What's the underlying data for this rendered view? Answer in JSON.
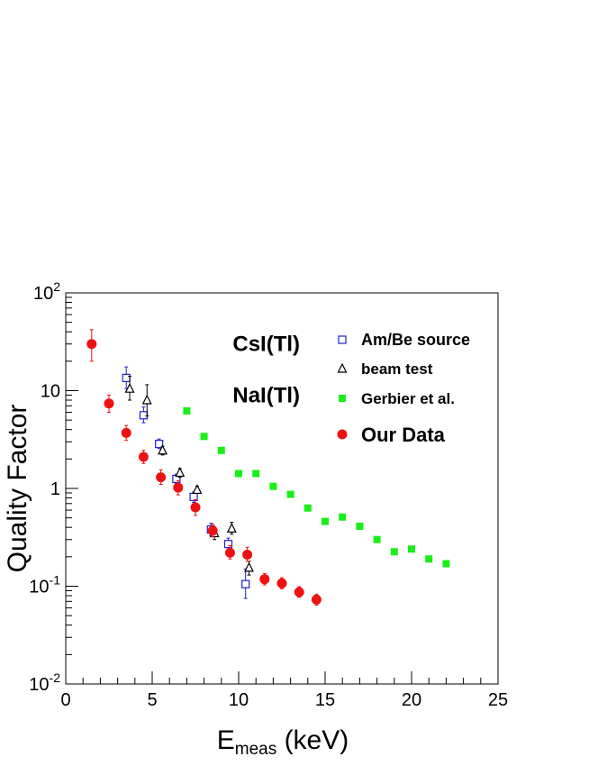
{
  "chart_data": {
    "type": "scatter",
    "title": "",
    "xlabel": {
      "main": "E",
      "sub": "meas",
      "unit": " (keV)"
    },
    "ylabel": "Quality Factor",
    "xlim": [
      0,
      25
    ],
    "ylim": [
      0.01,
      100
    ],
    "yscale": "log",
    "grid": false,
    "x_ticks": [
      0,
      5,
      10,
      15,
      20,
      25
    ],
    "x_tick_labels": [
      "0",
      "5",
      "10",
      "15",
      "20",
      "25"
    ],
    "y_ticks": [
      {
        "value": 0.01,
        "base": "10",
        "exp": "-2"
      },
      {
        "value": 0.1,
        "base": "10",
        "exp": "-1"
      },
      {
        "value": 1,
        "base": "1",
        "exp": ""
      },
      {
        "value": 10,
        "base": "10",
        "exp": ""
      },
      {
        "value": 100,
        "base": "10",
        "exp": "2"
      }
    ],
    "annotations": [
      {
        "text": "CsI(Tl)",
        "x": 11.6,
        "y": 30
      },
      {
        "text": "NaI(Tl)",
        "x": 11.6,
        "y": 9.0
      }
    ],
    "series": [
      {
        "name": "Am/Be source",
        "marker": "open-square",
        "color": "#1f1fd0",
        "points": [
          {
            "x": 3.5,
            "y": 13.5,
            "lo": 10.5,
            "hi": 17.5
          },
          {
            "x": 4.5,
            "y": 5.6,
            "lo": 4.7,
            "hi": 6.8
          },
          {
            "x": 5.4,
            "y": 2.85,
            "lo": 2.55,
            "hi": 3.2
          },
          {
            "x": 6.4,
            "y": 1.25,
            "lo": 1.12,
            "hi": 1.4
          },
          {
            "x": 7.4,
            "y": 0.82,
            "lo": 0.72,
            "hi": 0.92
          },
          {
            "x": 8.4,
            "y": 0.38,
            "lo": 0.33,
            "hi": 0.44
          },
          {
            "x": 9.4,
            "y": 0.27,
            "lo": 0.23,
            "hi": 0.31
          },
          {
            "x": 10.4,
            "y": 0.105,
            "lo": 0.075,
            "hi": 0.15
          }
        ]
      },
      {
        "name": "beam test",
        "marker": "open-triangle",
        "color": "#000000",
        "points": [
          {
            "x": 3.7,
            "y": 10.5,
            "lo": 8.0,
            "hi": 14.0
          },
          {
            "x": 4.7,
            "y": 8.0,
            "lo": 5.5,
            "hi": 11.5
          },
          {
            "x": 5.6,
            "y": 2.45,
            "lo": 2.2,
            "hi": 2.7
          },
          {
            "x": 6.6,
            "y": 1.45,
            "lo": 1.3,
            "hi": 1.6
          },
          {
            "x": 7.6,
            "y": 0.97,
            "lo": 0.9,
            "hi": 1.05
          },
          {
            "x": 8.6,
            "y": 0.35,
            "lo": 0.3,
            "hi": 0.4
          },
          {
            "x": 9.6,
            "y": 0.39,
            "lo": 0.34,
            "hi": 0.45
          },
          {
            "x": 10.6,
            "y": 0.155,
            "lo": 0.13,
            "hi": 0.18
          }
        ]
      },
      {
        "name": "Gerbier et al.",
        "marker": "filled-square",
        "color": "#19ee19",
        "points": [
          {
            "x": 7,
            "y": 6.2
          },
          {
            "x": 8,
            "y": 3.4
          },
          {
            "x": 9,
            "y": 2.45
          },
          {
            "x": 10,
            "y": 1.42
          },
          {
            "x": 11,
            "y": 1.42
          },
          {
            "x": 12,
            "y": 1.05
          },
          {
            "x": 13,
            "y": 0.87
          },
          {
            "x": 14,
            "y": 0.63
          },
          {
            "x": 15,
            "y": 0.46
          },
          {
            "x": 16,
            "y": 0.51
          },
          {
            "x": 17,
            "y": 0.41
          },
          {
            "x": 18,
            "y": 0.3
          },
          {
            "x": 19,
            "y": 0.225
          },
          {
            "x": 20,
            "y": 0.24
          },
          {
            "x": 21,
            "y": 0.19
          },
          {
            "x": 22,
            "y": 0.17
          }
        ]
      },
      {
        "name": "Our Data",
        "marker": "filled-circle",
        "color": "#ee1111",
        "points": [
          {
            "x": 1.5,
            "y": 30,
            "lo": 20,
            "hi": 42
          },
          {
            "x": 2.5,
            "y": 7.4,
            "lo": 6.0,
            "hi": 9.0
          },
          {
            "x": 3.5,
            "y": 3.7,
            "lo": 3.1,
            "hi": 4.4
          },
          {
            "x": 4.5,
            "y": 2.1,
            "lo": 1.8,
            "hi": 2.45
          },
          {
            "x": 5.5,
            "y": 1.3,
            "lo": 1.1,
            "hi": 1.55
          },
          {
            "x": 6.5,
            "y": 1.02,
            "lo": 0.86,
            "hi": 1.2
          },
          {
            "x": 7.5,
            "y": 0.64,
            "lo": 0.53,
            "hi": 0.77
          },
          {
            "x": 8.5,
            "y": 0.37,
            "lo": 0.32,
            "hi": 0.43
          },
          {
            "x": 9.5,
            "y": 0.22,
            "lo": 0.19,
            "hi": 0.26
          },
          {
            "x": 10.5,
            "y": 0.21,
            "lo": 0.18,
            "hi": 0.25
          },
          {
            "x": 11.5,
            "y": 0.118,
            "lo": 0.103,
            "hi": 0.135
          },
          {
            "x": 12.5,
            "y": 0.107,
            "lo": 0.094,
            "hi": 0.122
          },
          {
            "x": 13.5,
            "y": 0.087,
            "lo": 0.077,
            "hi": 0.099
          },
          {
            "x": 14.5,
            "y": 0.073,
            "lo": 0.064,
            "hi": 0.083
          }
        ]
      }
    ],
    "legend": {
      "placement": "top-right",
      "entries": [
        "Am/Be source",
        "beam test",
        "Gerbier et al.",
        "Our Data"
      ]
    }
  }
}
